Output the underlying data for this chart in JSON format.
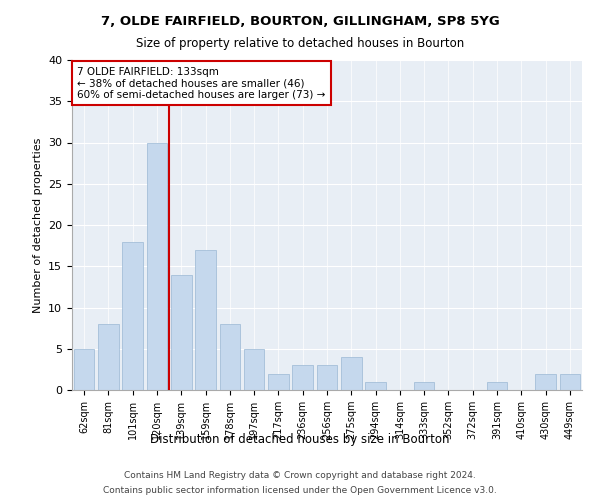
{
  "title1": "7, OLDE FAIRFIELD, BOURTON, GILLINGHAM, SP8 5YG",
  "title2": "Size of property relative to detached houses in Bourton",
  "xlabel": "Distribution of detached houses by size in Bourton",
  "ylabel": "Number of detached properties",
  "categories": [
    "62sqm",
    "81sqm",
    "101sqm",
    "120sqm",
    "139sqm",
    "159sqm",
    "178sqm",
    "197sqm",
    "217sqm",
    "236sqm",
    "256sqm",
    "275sqm",
    "294sqm",
    "314sqm",
    "333sqm",
    "352sqm",
    "372sqm",
    "391sqm",
    "410sqm",
    "430sqm",
    "449sqm"
  ],
  "values": [
    5,
    8,
    18,
    30,
    14,
    17,
    8,
    5,
    2,
    3,
    3,
    4,
    1,
    0,
    1,
    0,
    0,
    1,
    0,
    2,
    2
  ],
  "bar_color": "#c5d8ed",
  "bar_edge_color": "#9ab8d4",
  "vline_x_index": 3.5,
  "vline_color": "#cc0000",
  "annotation_text": "7 OLDE FAIRFIELD: 133sqm\n← 38% of detached houses are smaller (46)\n60% of semi-detached houses are larger (73) →",
  "annotation_box_color": "#ffffff",
  "annotation_box_edge_color": "#cc0000",
  "ylim": [
    0,
    40
  ],
  "yticks": [
    0,
    5,
    10,
    15,
    20,
    25,
    30,
    35,
    40
  ],
  "bg_color": "#e8eef5",
  "footer1": "Contains HM Land Registry data © Crown copyright and database right 2024.",
  "footer2": "Contains public sector information licensed under the Open Government Licence v3.0."
}
